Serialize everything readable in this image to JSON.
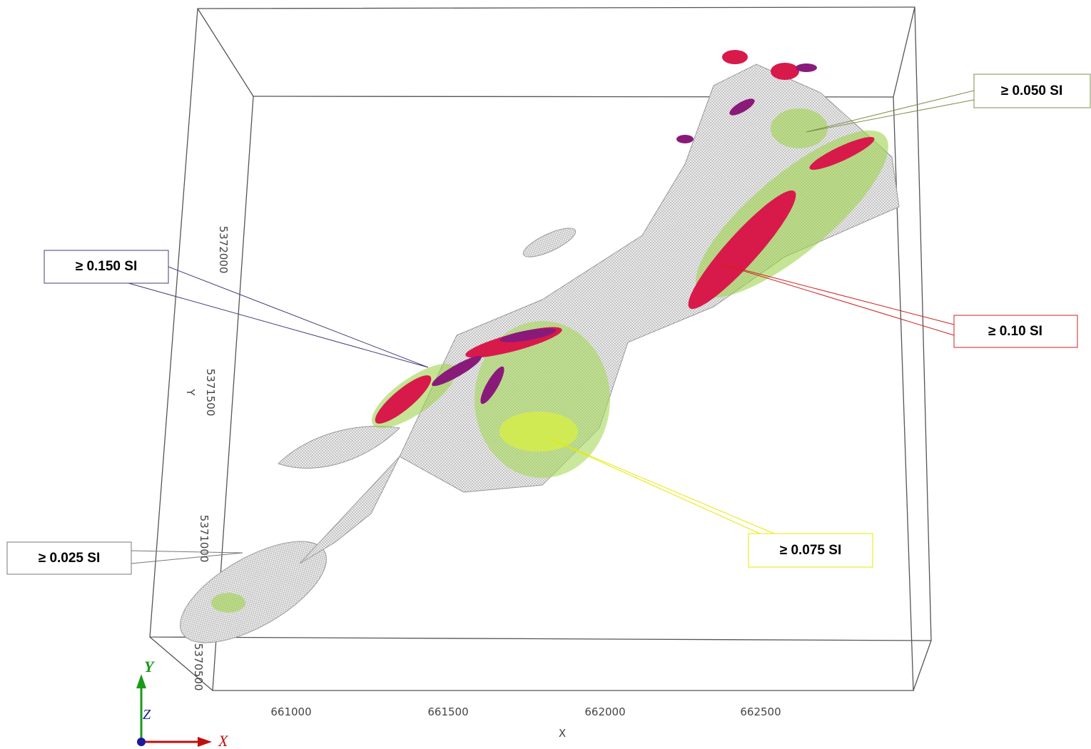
{
  "callouts": [
    {
      "label": "≥ 0.050 SI"
    },
    {
      "label": "≥ 0.150 SI"
    },
    {
      "label": "≥ 0.10 SI"
    },
    {
      "label": "≥ 0.025 SI"
    },
    {
      "label": "≥ 0.075 SI"
    }
  ],
  "axes": {
    "x_label": "X",
    "x_ticks": [
      "661000",
      "661500",
      "662000",
      "662500"
    ],
    "y_label": "Y",
    "y_ticks": [
      "5370500",
      "5371000",
      "5371500",
      "5372000"
    ]
  },
  "triad": {
    "y": "Y",
    "z": "Z",
    "x": "X"
  }
}
